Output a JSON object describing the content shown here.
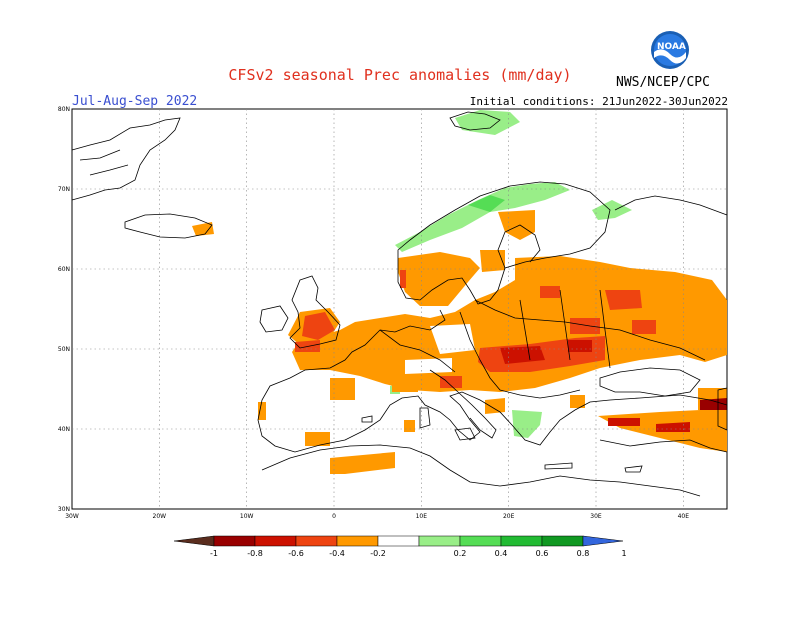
{
  "header": {
    "title": "CFSv2 seasonal Prec anomalies (mm/day)",
    "season": "Jul-Aug-Sep 2022",
    "initial_conditions": "Initial conditions: 21Jun2022-30Jun2022",
    "agency": "NWS/NCEP/CPC",
    "logo_text": "NOAA"
  },
  "map": {
    "region": "Europe",
    "lon_range": [
      -30,
      45
    ],
    "lat_range": [
      30,
      80
    ],
    "lon_ticks": [
      "30W",
      "20W",
      "10W",
      "0",
      "10E",
      "20E",
      "30E",
      "40E"
    ],
    "lat_ticks": [
      "80N",
      "70N",
      "60N",
      "50N",
      "40N",
      "30N"
    ],
    "grid": true
  },
  "colorbar": {
    "labels": [
      "-1",
      "-0.8",
      "-0.6",
      "-0.4",
      "-0.2",
      "0.2",
      "0.4",
      "0.6",
      "0.8",
      "1"
    ],
    "colors": [
      "#5a2d1e",
      "#990000",
      "#cc1100",
      "#ee4411",
      "#ff9900",
      "#ffffff",
      "#99ee88",
      "#55dd55",
      "#22bb33",
      "#119922",
      "#3366dd"
    ]
  }
}
